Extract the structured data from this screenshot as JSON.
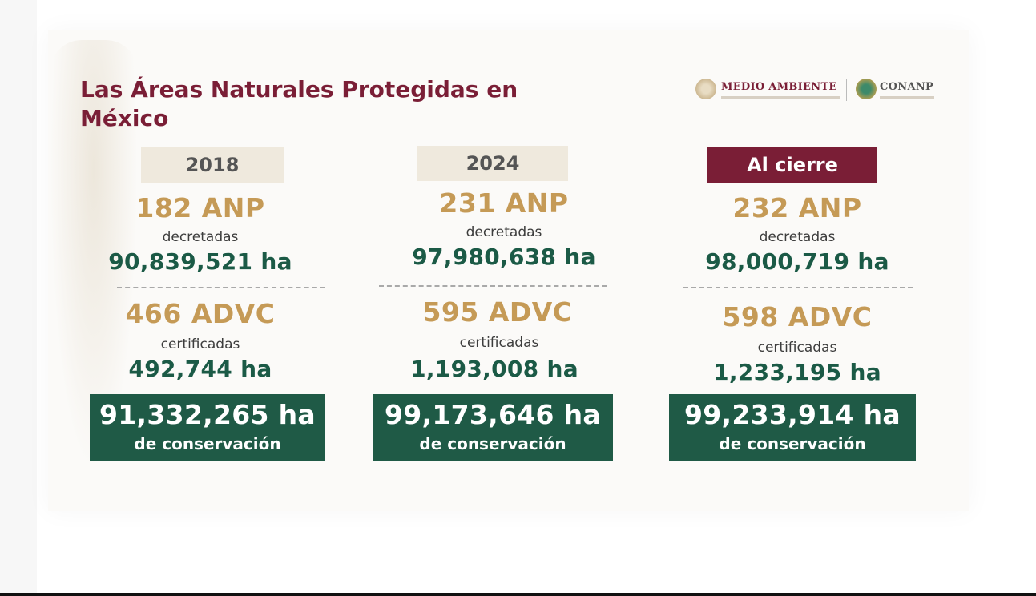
{
  "slide": {
    "title": "Las Áreas Naturales Protegidas en México",
    "logos": {
      "medio_ambiente": "MEDIO AMBIENTE",
      "conanp": "CONANP"
    }
  },
  "columns": [
    {
      "period": "2018",
      "anp": "182 ANP",
      "anp_label": "decretadas",
      "anp_area": "90,839,521 ha",
      "advc": "466 ADVC",
      "advc_label": "certificadas",
      "advc_area": "492,744  ha",
      "total": "91,332,265 ha",
      "total_label": "de conservación"
    },
    {
      "period": "2024",
      "anp": "231 ANP",
      "anp_label": "decretadas",
      "anp_area": "97,980,638  ha",
      "advc": "595 ADVC",
      "advc_label": "certificadas",
      "advc_area": "1,193,008 ha",
      "total": "99,173,646 ha",
      "total_label": "de conservación"
    },
    {
      "period": "Al cierre",
      "anp": "232 ANP",
      "anp_label": "decretadas",
      "anp_area": "98,000,719  ha",
      "advc": "598 ADVC",
      "advc_label": "certificadas",
      "advc_area": "1,233,195 ha",
      "total": "99,233,914 ha",
      "total_label": "de conservación"
    }
  ],
  "colors": {
    "guinda": "#7a1e36",
    "gold": "#c59a56",
    "green": "#1f5a46",
    "tag_light": "#efe9dd"
  }
}
